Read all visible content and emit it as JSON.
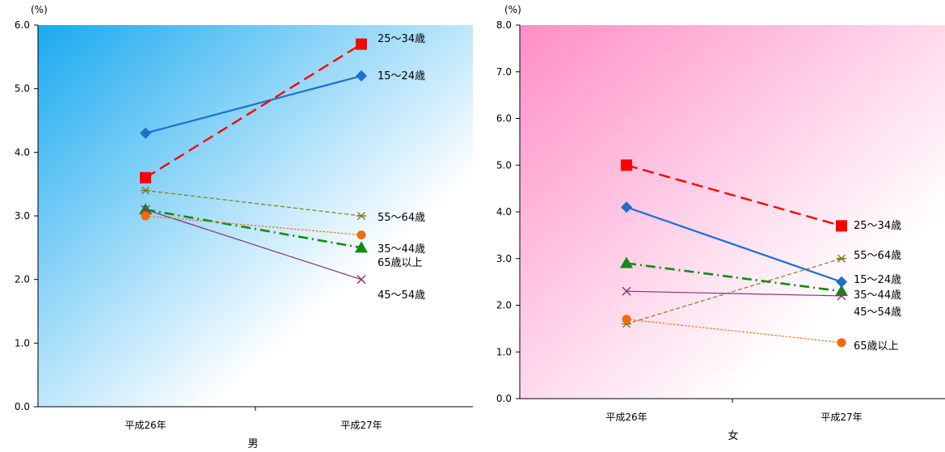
{
  "chart_data": [
    {
      "type": "line",
      "unit_label": "(%)",
      "xlabel": "男",
      "ylabel": "",
      "categories": [
        "平成26年",
        "平成27年"
      ],
      "ylim": [
        0,
        6
      ],
      "yticks": [
        "0.0",
        "1.0",
        "2.0",
        "3.0",
        "4.0",
        "5.0",
        "6.0"
      ],
      "background": [
        "#1aaaf0",
        "#ffffff"
      ],
      "series": [
        {
          "name": "15〜24歳",
          "values": [
            4.3,
            5.2
          ],
          "color": "#1f6fcf",
          "marker": "diamond",
          "dash": "solid",
          "label_lines": [
            "15〜24歳"
          ]
        },
        {
          "name": "25〜34歳",
          "values": [
            3.6,
            5.7
          ],
          "color": "#ff0000",
          "marker": "square",
          "dash": "longdash",
          "label_lines": [
            "25〜34歳"
          ]
        },
        {
          "name": "35〜44歳",
          "values": [
            3.1,
            2.5
          ],
          "color": "#138a13",
          "marker": "triangle",
          "dash": "dashdot",
          "label_lines": [
            "35〜44歳",
            "65歳以上"
          ]
        },
        {
          "name": "45〜54歳",
          "values": [
            3.1,
            2.0
          ],
          "color": "#8c2f6e",
          "marker": "x",
          "dash": "solid-thin",
          "label_lines": [
            "45〜54歳"
          ]
        },
        {
          "name": "55〜64歳",
          "values": [
            3.4,
            3.0
          ],
          "color": "#7f7a1a",
          "marker": "star",
          "dash": "shortdash",
          "label_lines": [
            "55〜64歳"
          ]
        },
        {
          "name": "65歳以上",
          "values": [
            3.0,
            2.7
          ],
          "color": "#f46a0e",
          "marker": "circle",
          "dash": "dotted",
          "label_lines": []
        }
      ]
    },
    {
      "type": "line",
      "unit_label": "(%)",
      "xlabel": "女",
      "ylabel": "",
      "categories": [
        "平成26年",
        "平成27年"
      ],
      "ylim": [
        0,
        8
      ],
      "yticks": [
        "0.0",
        "1.0",
        "2.0",
        "3.0",
        "4.0",
        "5.0",
        "6.0",
        "7.0",
        "8.0"
      ],
      "background": [
        "#ff8ec6",
        "#ffffff"
      ],
      "series": [
        {
          "name": "15〜24歳",
          "values": [
            4.1,
            2.5
          ],
          "color": "#1f6fcf",
          "marker": "diamond",
          "dash": "solid",
          "label_lines": [
            "15〜24歳"
          ]
        },
        {
          "name": "25〜34歳",
          "values": [
            5.0,
            3.7
          ],
          "color": "#ff0000",
          "marker": "square",
          "dash": "longdash",
          "label_lines": [
            "25〜34歳"
          ]
        },
        {
          "name": "35〜44歳",
          "values": [
            2.9,
            2.3
          ],
          "color": "#138a13",
          "marker": "triangle",
          "dash": "dashdot",
          "label_lines": [
            "35〜44歳"
          ]
        },
        {
          "name": "45〜54歳",
          "values": [
            2.3,
            2.2
          ],
          "color": "#8c2f6e",
          "marker": "x",
          "dash": "solid-thin",
          "label_lines": [
            "45〜54歳"
          ]
        },
        {
          "name": "55〜64歳",
          "values": [
            1.6,
            3.0
          ],
          "color": "#7f7a1a",
          "marker": "star",
          "dash": "shortdash",
          "label_lines": [
            "55〜64歳"
          ]
        },
        {
          "name": "65歳以上",
          "values": [
            1.7,
            1.2
          ],
          "color": "#f46a0e",
          "marker": "circle",
          "dash": "dotted",
          "label_lines": [
            "65歳以上"
          ]
        }
      ]
    }
  ]
}
